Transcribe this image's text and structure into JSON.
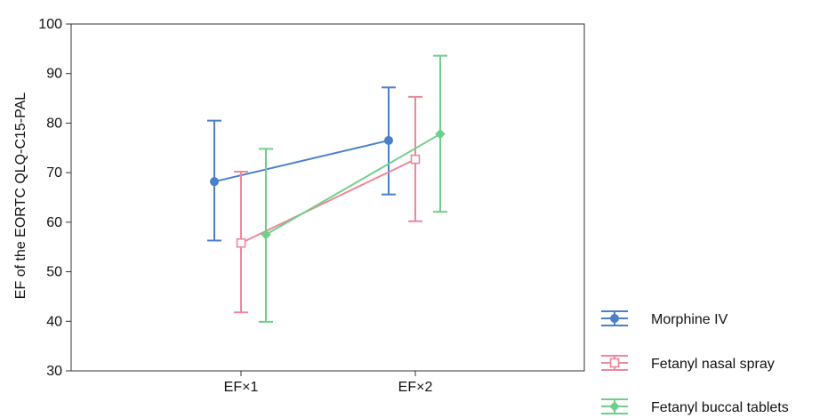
{
  "chart_data": {
    "type": "line",
    "categories": [
      "EF×1",
      "EF×2"
    ],
    "ylabel": "EF of the EORTC QLQ-C15-PAL",
    "xlabel": "",
    "ylim": [
      30,
      100
    ],
    "yticks": [
      30,
      40,
      50,
      60,
      70,
      80,
      90,
      100
    ],
    "grid": false,
    "legend_position": "bottom-right outside",
    "series": [
      {
        "name": "Morphine IV",
        "color": "#4a7fc9",
        "marker": "circle",
        "values": [
          68.2,
          76.5
        ],
        "lower": [
          56.3,
          65.6
        ],
        "upper": [
          80.5,
          87.2
        ]
      },
      {
        "name": "Fetanyl nasal spray",
        "color": "#f0869a",
        "marker": "square",
        "values": [
          55.8,
          72.7
        ],
        "lower": [
          41.8,
          60.2
        ],
        "upper": [
          70.2,
          85.3
        ]
      },
      {
        "name": "Fetanyl buccal tablets",
        "color": "#6fcf8a",
        "marker": "diamond",
        "values": [
          57.5,
          77.8
        ],
        "lower": [
          39.9,
          62.1
        ],
        "upper": [
          74.8,
          93.6
        ]
      }
    ]
  }
}
